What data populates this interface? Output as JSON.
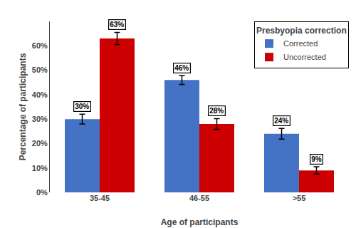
{
  "chart_data": {
    "type": "bar",
    "title": "Presbyopia correction",
    "xlabel": "Age of participants",
    "ylabel": "Percentage of participants",
    "categories": [
      "35-45",
      "46-55",
      ">55"
    ],
    "series": [
      {
        "name": "Corrected",
        "color": "#4472C4",
        "values": [
          30,
          46,
          24
        ],
        "errors": [
          2.0,
          1.8,
          2.2
        ],
        "value_labels": [
          "30%",
          "46%",
          "24%"
        ]
      },
      {
        "name": "Uncorrected",
        "color": "#CC0000",
        "values": [
          63,
          28,
          9
        ],
        "errors": [
          2.5,
          2.2,
          1.5
        ],
        "value_labels": [
          "63%",
          "28%",
          "9%"
        ]
      }
    ],
    "ylim": [
      0,
      70
    ],
    "yticks": [
      {
        "value": 0,
        "label": "0%"
      },
      {
        "value": 10,
        "label": "10%"
      },
      {
        "value": 20,
        "label": "20%"
      },
      {
        "value": 30,
        "label": "30%"
      },
      {
        "value": 40,
        "label": "40%"
      },
      {
        "value": 50,
        "label": "50%"
      },
      {
        "value": 60,
        "label": "60%"
      }
    ],
    "grid": false,
    "legend": "upper right",
    "data_labels": true
  }
}
